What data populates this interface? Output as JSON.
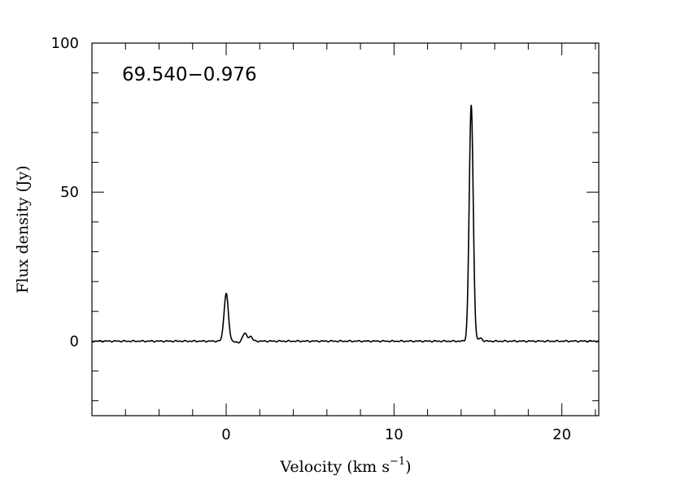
{
  "chart_data": {
    "type": "line",
    "title": "69.540−0.976",
    "xlabel": "Velocity (km s",
    "xlabel_exponent": "−1",
    "xlabel_close": ")",
    "ylabel": "Flux density (Jy)",
    "xlim": [
      -8,
      22.2
    ],
    "ylim": [
      -25,
      100
    ],
    "x_ticks": [
      0,
      10,
      20
    ],
    "x_tick_labels": [
      "0",
      "10",
      "20"
    ],
    "y_ticks": [
      0,
      50,
      100
    ],
    "y_tick_labels": [
      "0",
      "50",
      "100"
    ],
    "x_minor_step": 2,
    "y_minor_step": 10,
    "grid": false,
    "line_color": "#000000",
    "series": [
      {
        "peaks": [
          {
            "center": 0.0,
            "height": 16.0,
            "fwhm": 0.3
          },
          {
            "center": 1.1,
            "height": 2.6,
            "fwhm": 0.3
          },
          {
            "center": 1.45,
            "height": 1.6,
            "fwhm": 0.25
          },
          {
            "center": 14.6,
            "height": 79.0,
            "fwhm": 0.28
          },
          {
            "center": 15.15,
            "height": 1.0,
            "fwhm": 0.25
          }
        ]
      }
    ]
  }
}
